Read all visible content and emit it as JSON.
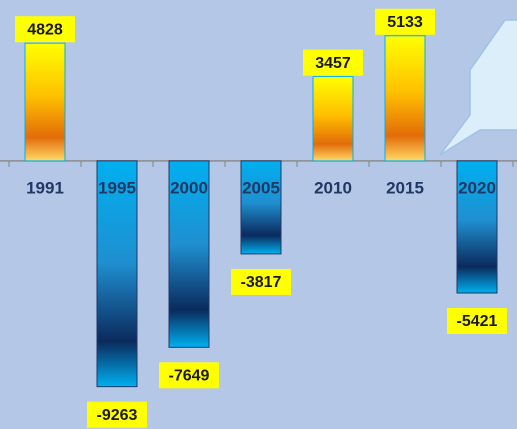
{
  "chart_data": {
    "type": "bar",
    "categories": [
      "1991",
      "1995",
      "2000",
      "2005",
      "2010",
      "2015",
      "2020"
    ],
    "values": [
      4828,
      -9263,
      -7649,
      -3817,
      3457,
      5133,
      -5421
    ],
    "ylim": [
      -11000,
      6600
    ]
  }
}
